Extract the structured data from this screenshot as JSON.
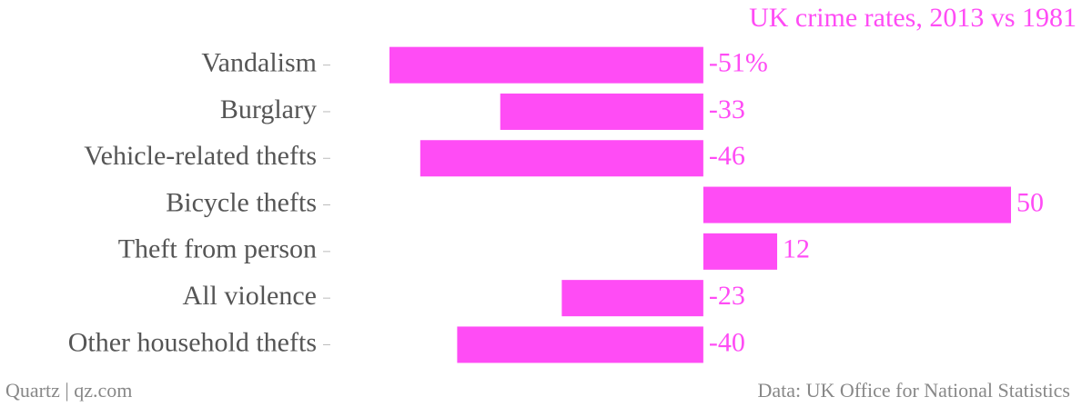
{
  "chart_data": {
    "type": "bar",
    "orientation": "horizontal",
    "title": "UK crime rates, 2013 vs 1981",
    "categories": [
      "Vandalism",
      "Burglary",
      "Vehicle-related thefts",
      "Bicycle thefts ",
      "Theft from person",
      "All violence",
      "Other household thefts"
    ],
    "values": [
      -51,
      -33,
      -46,
      50,
      12,
      -23,
      -40
    ],
    "value_labels": [
      "-51%",
      "-33",
      "-46",
      "50",
      "12",
      "-23",
      "-40"
    ],
    "color": "#ff4cf5",
    "source": "Data: UK Office for National Statistics",
    "credit": "Quartz | qz.com"
  }
}
